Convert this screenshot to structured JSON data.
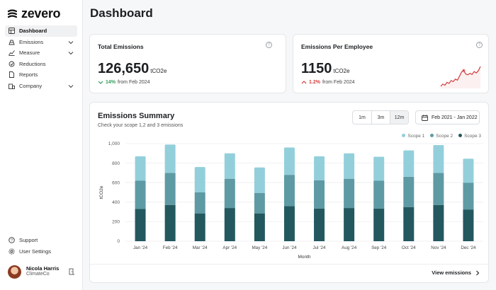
{
  "brand": {
    "name": "zevero"
  },
  "sidebar": {
    "items": [
      {
        "label": "Dashboard",
        "icon": "dashboard-icon",
        "active": true,
        "expandable": false
      },
      {
        "label": "Emissions",
        "icon": "emissions-icon",
        "active": false,
        "expandable": true
      },
      {
        "label": "Measure",
        "icon": "measure-icon",
        "active": false,
        "expandable": true
      },
      {
        "label": "Reductions",
        "icon": "reductions-icon",
        "active": false,
        "expandable": false
      },
      {
        "label": "Reports",
        "icon": "reports-icon",
        "active": false,
        "expandable": false
      },
      {
        "label": "Company",
        "icon": "company-icon",
        "active": false,
        "expandable": true
      }
    ],
    "bottom": [
      {
        "label": "Support",
        "icon": "help-icon"
      },
      {
        "label": "User Settings",
        "icon": "settings-icon"
      }
    ],
    "user": {
      "name": "Nicola Harris",
      "org": "ClimateCo"
    }
  },
  "page": {
    "title": "Dashboard"
  },
  "total_emissions": {
    "title": "Total Emissions",
    "value": "126,650",
    "unit": "tCO2e",
    "delta": "14%",
    "delta_text": "from Feb 2024",
    "direction": "down",
    "color": "#2e9e5b"
  },
  "per_employee": {
    "title": "Emissions Per Employee",
    "value": "1150",
    "unit": "tCO2e",
    "delta": "1.2%",
    "delta_text": "from Feb 2024",
    "direction": "up",
    "color": "#d33b3b"
  },
  "summary": {
    "title": "Emissions Summary",
    "subtitle": "Check your scope 1,2 and 3 emissions",
    "ranges": [
      "1m",
      "3m",
      "12m"
    ],
    "selected_range": "12m",
    "date_range": "Feb 2021 - Jan 2022",
    "view_link": "View emissions"
  },
  "chart_data": {
    "type": "bar",
    "stacked": true,
    "categories": [
      "Jan '24",
      "Feb '24",
      "Mar '24",
      "Apr '24",
      "May '24",
      "Jun '24",
      "Jul '24",
      "Aug '24",
      "Sep '24",
      "Oct '24",
      "Nov '24",
      "Dec '24"
    ],
    "series": [
      {
        "name": "Scope 3",
        "color": "#23585f",
        "values": [
          330,
          370,
          285,
          340,
          285,
          360,
          335,
          340,
          335,
          350,
          370,
          325
        ]
      },
      {
        "name": "Scope 2",
        "color": "#5e9aa4",
        "values": [
          290,
          330,
          215,
          300,
          210,
          320,
          290,
          300,
          285,
          310,
          330,
          275
        ]
      },
      {
        "name": "Scope 1",
        "color": "#93cfdb",
        "values": [
          250,
          290,
          260,
          260,
          260,
          280,
          245,
          260,
          245,
          270,
          285,
          245
        ]
      }
    ],
    "xlabel": "Month",
    "ylabel": "tCO2e",
    "ylim": [
      0,
      1000
    ],
    "yticks": [
      "0",
      "200",
      "400",
      "600",
      "800",
      "1,000"
    ],
    "legend": "top-right",
    "grid": true
  },
  "sparkline_data": {
    "type": "line",
    "values": [
      30,
      36,
      33,
      41,
      38,
      46,
      43,
      50,
      47,
      58,
      70,
      74,
      64,
      62,
      66,
      63,
      71,
      67,
      73,
      85
    ],
    "highlight_index": 11,
    "color": "#d33b3b"
  }
}
